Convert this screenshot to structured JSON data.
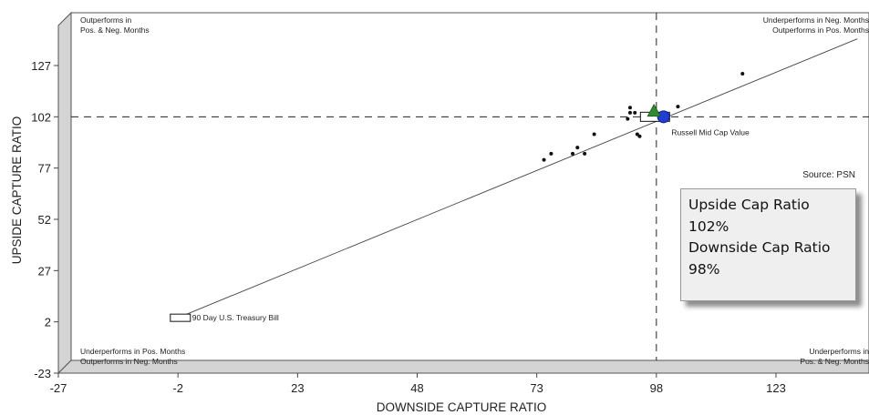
{
  "chart_data": {
    "type": "scatter",
    "xlabel": "DOWNSIDE CAPTURE RATIO",
    "ylabel": "UPSIDE CAPTURE RATIO",
    "xlim": [
      -27,
      140
    ],
    "ylim": [
      -23,
      148
    ],
    "x_ticks": [
      -27,
      -2,
      23,
      48,
      73,
      98,
      123
    ],
    "y_ticks": [
      -23,
      2,
      27,
      52,
      77,
      102,
      127
    ],
    "reference_lines": {
      "x": 98,
      "y": 102,
      "style": "dashed"
    },
    "regression_line": {
      "from": [
        -2,
        4
      ],
      "to": [
        140,
        140
      ]
    },
    "quadrant_labels": {
      "top_left": [
        "Outperforms in",
        "Pos. & Neg. Months"
      ],
      "top_right": [
        "Underperforms in Neg. Months",
        "Outperforms in Pos. Months"
      ],
      "bottom_left": [
        "Underperforms in Pos. Months",
        "Outperforms in Neg. Months"
      ],
      "bottom_right": [
        "Underperforms in",
        "Pos. & Neg. Months"
      ]
    },
    "peers": [
      {
        "x": 74.5,
        "y": 81
      },
      {
        "x": 76,
        "y": 84
      },
      {
        "x": 80.5,
        "y": 84
      },
      {
        "x": 81.5,
        "y": 87
      },
      {
        "x": 83,
        "y": 84
      },
      {
        "x": 85,
        "y": 93.5
      },
      {
        "x": 92,
        "y": 101
      },
      {
        "x": 92.5,
        "y": 106.5
      },
      {
        "x": 92.5,
        "y": 104
      },
      {
        "x": 93.5,
        "y": 104
      },
      {
        "x": 94,
        "y": 93.5
      },
      {
        "x": 94.5,
        "y": 92.5
      },
      {
        "x": 102.5,
        "y": 107
      },
      {
        "x": 116,
        "y": 123
      }
    ],
    "benchmarks": [
      {
        "name": "Russell Mid Cap Value",
        "x": 100,
        "y": 102,
        "marker": "square"
      },
      {
        "name": "90 Day U.S. Treasury Bill",
        "x": -1.5,
        "y": 4,
        "marker": "square"
      }
    ],
    "highlight_points": [
      {
        "x": 99.5,
        "y": 102,
        "marker": "circle",
        "color": "#1f3fd6"
      },
      {
        "x": 97.5,
        "y": 104.5,
        "marker": "triangle",
        "color": "#2e8b2e"
      }
    ],
    "source": "Source:  PSN",
    "annotation": {
      "lines": [
        "Upside Cap Ratio",
        "102%",
        "Downside Cap Ratio",
        "98%"
      ]
    }
  }
}
